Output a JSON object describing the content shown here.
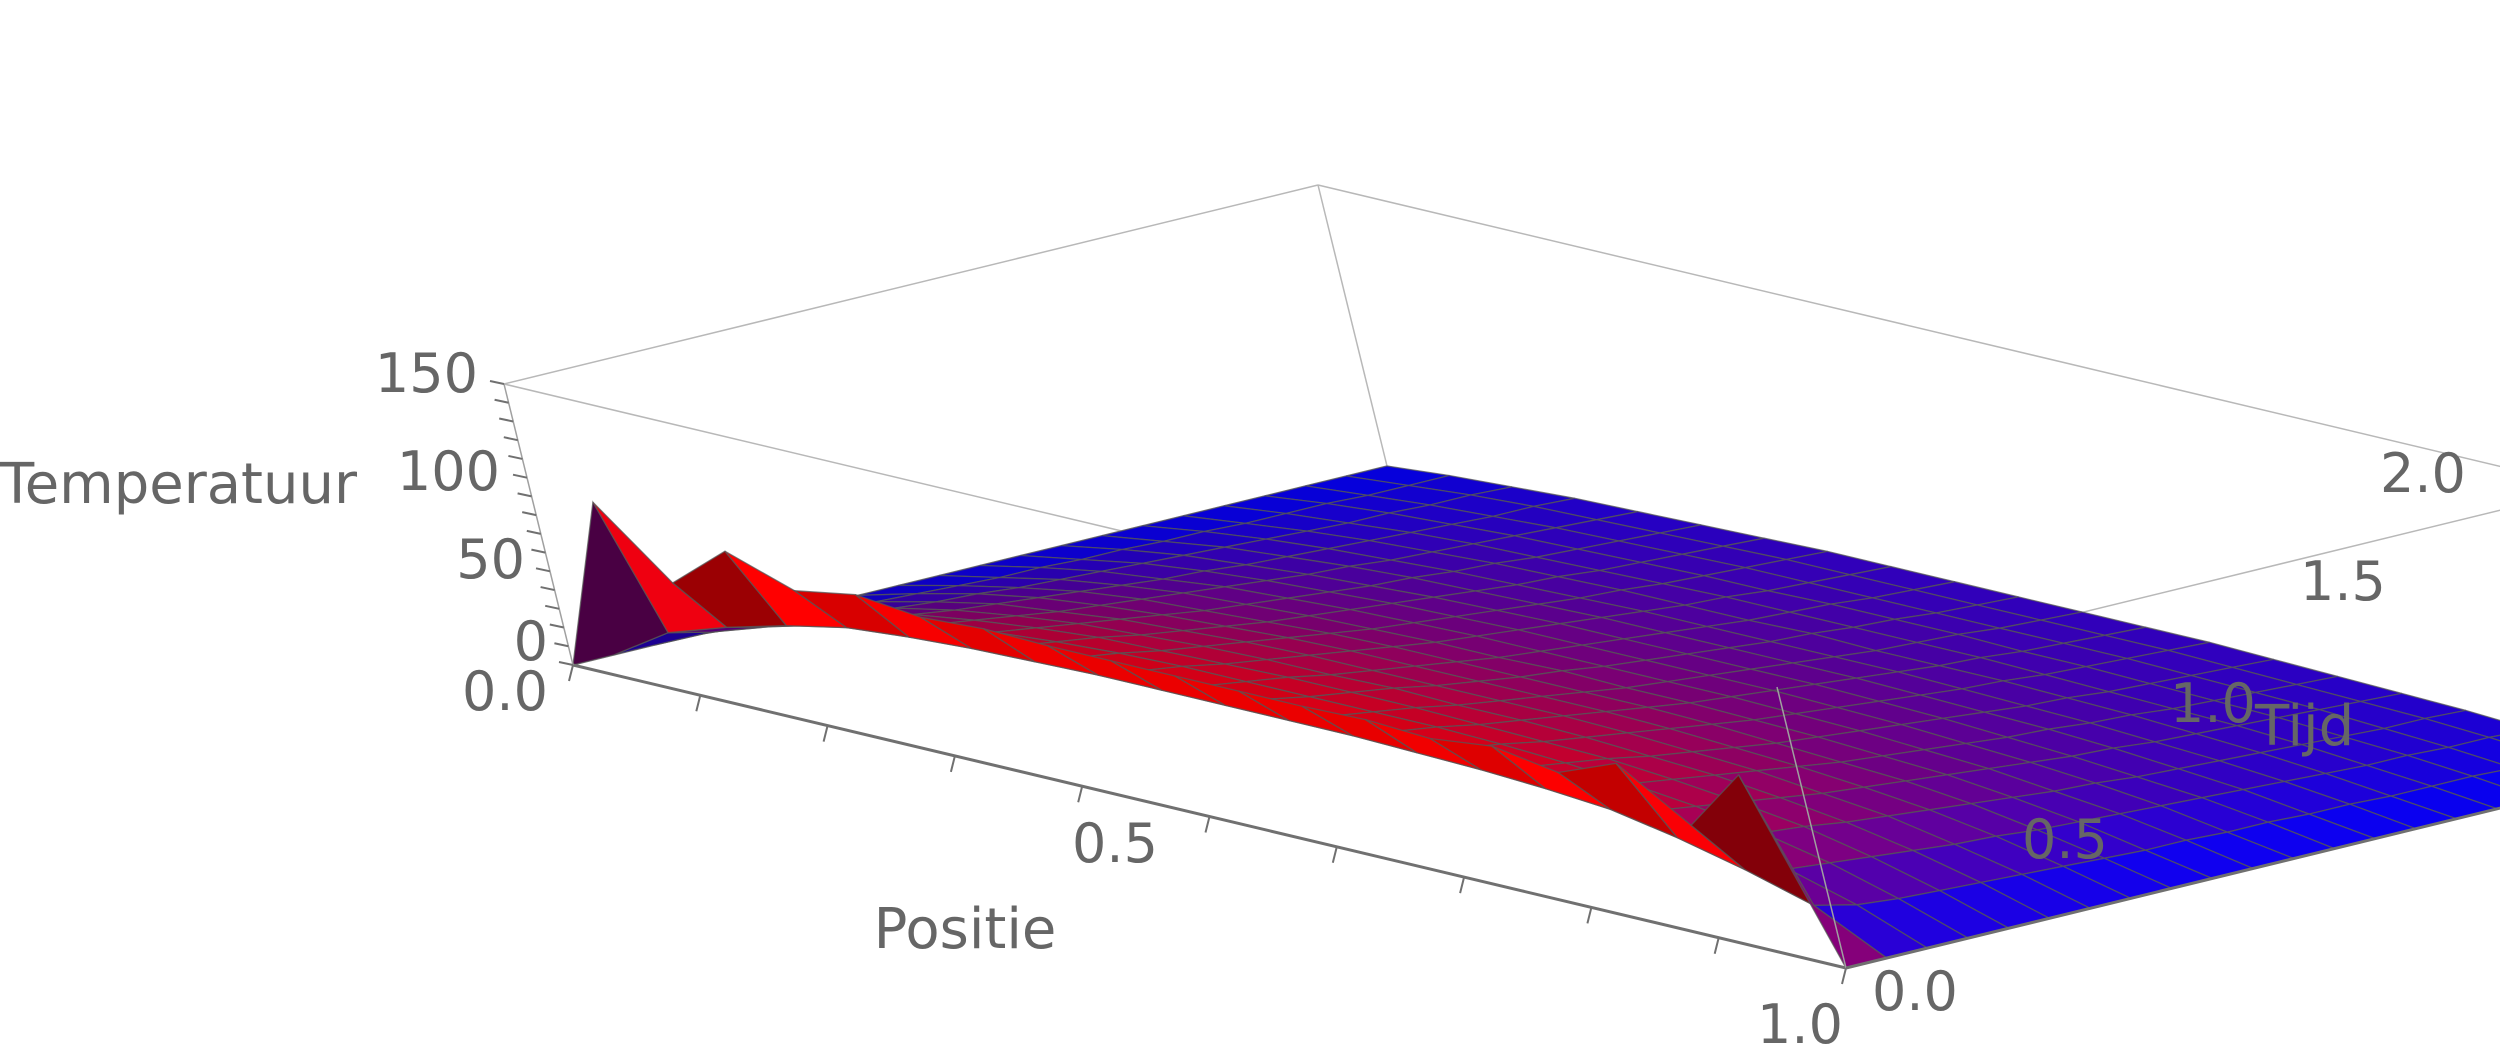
{
  "chart_data": {
    "type": "surface3d",
    "title": "",
    "xlabel": "Positie",
    "ylabel": "Tijd",
    "zlabel": "Temperatuur",
    "xlim": [
      0,
      1
    ],
    "ylim": [
      0,
      2
    ],
    "zlim": [
      0,
      150
    ],
    "x_ticks": [
      "0.0",
      "0.5",
      "1.0"
    ],
    "y_ticks": [
      "0.0",
      "0.5",
      "1.0",
      "1.5",
      "2.0"
    ],
    "z_ticks": [
      "0",
      "50",
      "100",
      "150"
    ],
    "color_scale": {
      "low": "#0000ff",
      "high": "#ff0000"
    },
    "mesh_color": "#555555",
    "box": true,
    "x": [
      0,
      0.05,
      0.1,
      0.15,
      0.2,
      0.25,
      0.3,
      0.35,
      0.4,
      0.45,
      0.5,
      0.55,
      0.6,
      0.65,
      0.7,
      0.75,
      0.8,
      0.85,
      0.9,
      0.95,
      1
    ],
    "y": [
      0,
      0.1,
      0.2,
      0.3,
      0.4,
      0.5,
      0.6,
      0.7,
      0.8,
      0.9,
      1.0,
      1.1,
      1.2,
      1.3,
      1.4,
      1.5,
      1.6,
      1.7,
      1.8,
      1.9,
      2.0
    ],
    "z": [
      [
        0,
        95,
        60,
        85,
        72,
        78,
        74,
        76,
        75,
        75,
        75,
        75,
        75,
        76,
        74,
        78,
        72,
        85,
        60,
        95,
        0
      ],
      [
        0,
        20,
        31,
        40,
        47,
        50,
        52,
        53,
        54,
        54,
        54,
        54,
        54,
        53,
        52,
        50,
        47,
        40,
        31,
        20,
        0
      ],
      [
        0,
        15,
        26,
        35,
        41,
        45,
        48,
        50,
        51,
        51,
        52,
        51,
        51,
        50,
        48,
        45,
        41,
        35,
        26,
        15,
        0
      ],
      [
        0,
        13,
        24,
        32,
        38,
        42,
        45,
        47,
        48,
        48,
        48,
        48,
        48,
        47,
        45,
        42,
        38,
        32,
        24,
        13,
        0
      ],
      [
        0,
        12,
        22,
        30,
        35,
        39,
        42,
        43,
        44,
        45,
        45,
        45,
        44,
        43,
        42,
        39,
        35,
        30,
        22,
        12,
        0
      ],
      [
        0,
        11,
        20,
        27,
        32,
        36,
        38,
        40,
        41,
        41,
        42,
        41,
        41,
        40,
        38,
        36,
        32,
        27,
        20,
        11,
        0
      ],
      [
        0,
        10,
        18,
        25,
        29,
        33,
        35,
        37,
        38,
        38,
        38,
        38,
        38,
        37,
        35,
        33,
        29,
        25,
        18,
        10,
        0
      ],
      [
        0,
        9,
        17,
        23,
        27,
        30,
        32,
        34,
        35,
        35,
        35,
        35,
        35,
        34,
        32,
        30,
        27,
        23,
        17,
        9,
        0
      ],
      [
        0,
        8,
        15,
        21,
        25,
        27,
        29,
        31,
        32,
        32,
        32,
        32,
        32,
        31,
        29,
        27,
        25,
        21,
        15,
        8,
        0
      ],
      [
        0,
        7,
        14,
        19,
        23,
        25,
        27,
        28,
        29,
        29,
        30,
        29,
        29,
        28,
        27,
        25,
        23,
        19,
        14,
        7,
        0
      ],
      [
        0,
        7,
        13,
        17,
        21,
        23,
        25,
        26,
        27,
        27,
        27,
        27,
        27,
        26,
        25,
        23,
        21,
        17,
        13,
        7,
        0
      ],
      [
        0,
        6,
        12,
        16,
        19,
        21,
        23,
        24,
        25,
        25,
        25,
        25,
        25,
        24,
        23,
        21,
        19,
        16,
        12,
        6,
        0
      ],
      [
        0,
        6,
        11,
        14,
        17,
        19,
        21,
        22,
        23,
        23,
        23,
        23,
        23,
        22,
        21,
        19,
        17,
        14,
        11,
        6,
        0
      ],
      [
        0,
        5,
        10,
        13,
        16,
        18,
        19,
        20,
        21,
        21,
        21,
        21,
        21,
        20,
        19,
        18,
        16,
        13,
        10,
        5,
        0
      ],
      [
        0,
        5,
        9,
        12,
        14,
        16,
        17,
        18,
        19,
        19,
        19,
        19,
        19,
        18,
        17,
        16,
        14,
        12,
        9,
        5,
        0
      ],
      [
        0,
        4,
        8,
        11,
        13,
        15,
        16,
        17,
        17,
        17,
        18,
        17,
        17,
        17,
        16,
        15,
        13,
        11,
        8,
        4,
        0
      ],
      [
        0,
        4,
        7,
        10,
        12,
        13,
        14,
        15,
        16,
        16,
        16,
        16,
        16,
        15,
        14,
        13,
        12,
        10,
        7,
        4,
        0
      ],
      [
        0,
        4,
        7,
        9,
        11,
        12,
        13,
        14,
        14,
        15,
        15,
        15,
        14,
        14,
        13,
        12,
        11,
        9,
        7,
        4,
        0
      ],
      [
        0,
        3,
        6,
        8,
        10,
        11,
        12,
        13,
        13,
        13,
        13,
        13,
        13,
        13,
        12,
        11,
        10,
        8,
        6,
        3,
        0
      ],
      [
        0,
        3,
        6,
        8,
        9,
        10,
        11,
        12,
        12,
        12,
        12,
        12,
        12,
        12,
        11,
        10,
        9,
        8,
        6,
        3,
        0
      ],
      [
        0,
        3,
        5,
        7,
        8,
        9,
        10,
        11,
        11,
        11,
        11,
        11,
        11,
        11,
        10,
        9,
        8,
        7,
        5,
        3,
        0
      ]
    ]
  }
}
